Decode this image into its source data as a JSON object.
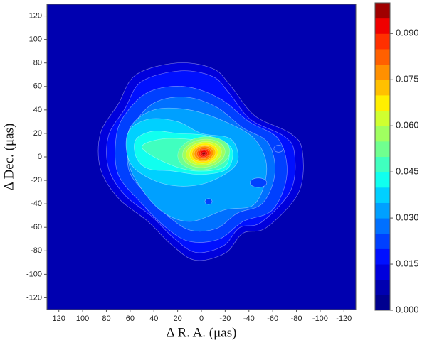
{
  "chart_data": {
    "type": "contour",
    "xlabel": "Δ R. A.  (μas)",
    "ylabel": "Δ Dec.  (μas)",
    "xlim": [
      130,
      -130
    ],
    "ylim": [
      -130,
      130
    ],
    "xticks": [
      120,
      100,
      80,
      60,
      40,
      20,
      0,
      -20,
      -40,
      -60,
      -80,
      -100,
      -120
    ],
    "yticks": [
      -120,
      -100,
      -80,
      -60,
      -40,
      -20,
      0,
      20,
      40,
      60,
      80,
      100,
      120
    ],
    "colorbar": {
      "clim": [
        0,
        0.1
      ],
      "ticks": [
        {
          "value": 0,
          "label": "0.000"
        },
        0.015,
        {
          "value": 0.03,
          "label": "0.030"
        },
        0.045,
        {
          "value": 0.06,
          "label": "0.060"
        },
        0.075,
        {
          "value": 0.09,
          "label": "0.090"
        }
      ],
      "colors": [
        "#00008f",
        "#0000b0",
        "#0000dc",
        "#0010ff",
        "#0040ff",
        "#0070ff",
        "#00a0ff",
        "#00d0ff",
        "#10ffef",
        "#40ffbf",
        "#70ff8f",
        "#a0ff60",
        "#d0ff30",
        "#ffef00",
        "#ffc000",
        "#ff9000",
        "#ff6000",
        "#ff3000",
        "#f00000",
        "#a00000"
      ]
    }
  }
}
